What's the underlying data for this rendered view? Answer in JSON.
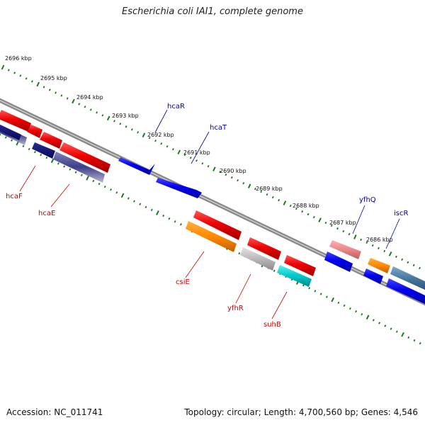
{
  "title": "Escherichia coli IAI1, complete genome",
  "footer": {
    "accession": "Accession: NC_011741",
    "summary": "Topology: circular; Length: 4,700,560 bp; Genes: 4,546"
  },
  "colors": {
    "backbone": "#8a8a8a",
    "tick": "#1a7a1a",
    "forward_label": "#0000aa",
    "reverse_label": "#cc0000"
  },
  "ruler": {
    "unit": "kbp",
    "labels": [
      "2696 kbp",
      "2695 kbp",
      "2694 kbp",
      "2693 kbp",
      "2692 kbp",
      "2691 kbp",
      "2690 kbp",
      "2689 kbp",
      "2688 kbp",
      "2687 kbp",
      "2686 kbp"
    ]
  },
  "genes": {
    "forward": [
      "hcaR",
      "hcaT",
      "yfhQ",
      "iscR"
    ],
    "reverse": [
      "hcaF",
      "hcaE",
      "csiE",
      "yfhR",
      "suhB"
    ]
  }
}
